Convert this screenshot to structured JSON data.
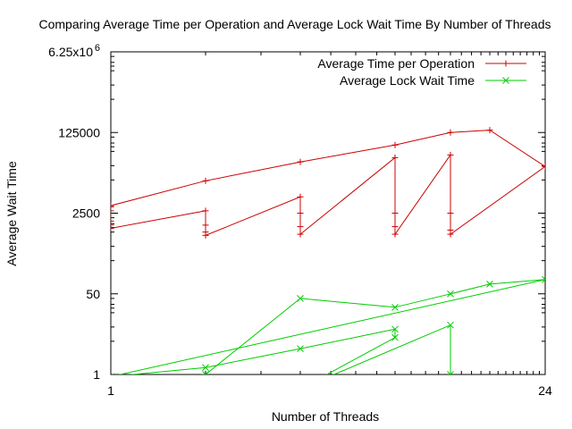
{
  "chart_data": {
    "type": "line",
    "title": "Comparing Average Time per Operation and Average Lock Wait Time By Number of Threads",
    "xlabel": "Number of Threads",
    "ylabel": "Average Wait Time",
    "xscale": "log",
    "yscale": "log",
    "xlim": [
      1,
      24
    ],
    "ylim": [
      1,
      6250000
    ],
    "x_ticks": [
      {
        "value": 1,
        "label": "1"
      },
      {
        "value": 24,
        "label": "24"
      }
    ],
    "y_ticks": [
      {
        "value": 1,
        "label": "1"
      },
      {
        "value": 50,
        "label": "50"
      },
      {
        "value": 2500,
        "label": "2500"
      },
      {
        "value": 125000,
        "label": "125000"
      },
      {
        "value": 6250000,
        "label": "6.25x10",
        "exponent": "6"
      }
    ],
    "grid": false,
    "legend_position": "top-right",
    "series": [
      {
        "name": "Average Time per Operation",
        "color": "#cc0000",
        "marker": "plus",
        "x": [
          1,
          1,
          1,
          1,
          1,
          2,
          2,
          2,
          2,
          4,
          4,
          4,
          4,
          8,
          8,
          8,
          8,
          12,
          12,
          12,
          12,
          24,
          16,
          12,
          8,
          4,
          2,
          1
        ],
        "y": [
          3400,
          2800,
          1700,
          1400,
          1200,
          2800,
          1400,
          1000,
          850,
          5500,
          2500,
          1300,
          900,
          37000,
          2500,
          1300,
          900,
          42000,
          2500,
          1100,
          900,
          24000,
          140000,
          125000,
          68000,
          30000,
          12000,
          3600
        ]
      },
      {
        "name": "Average Lock Wait Time",
        "color": "#00cc00",
        "marker": "x",
        "x": [
          1,
          2,
          4,
          8,
          12,
          16,
          24,
          1,
          2,
          4,
          8,
          8,
          4,
          12,
          12,
          8
        ],
        "y": [
          0.7,
          1,
          40,
          26,
          50,
          80,
          100,
          0.9,
          1.4,
          3.5,
          9,
          6,
          0.5,
          11,
          1,
          0.7
        ]
      }
    ]
  }
}
